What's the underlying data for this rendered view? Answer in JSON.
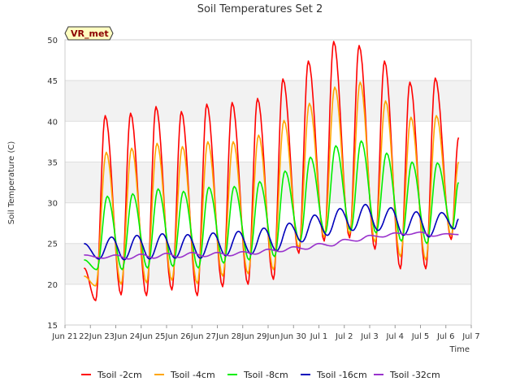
{
  "chart_data": {
    "type": "line",
    "title": "Soil Temperatures Set 2",
    "xlabel": "Time",
    "ylabel": "Soil Temperature (C)",
    "ylim": [
      15,
      50
    ],
    "yticks": [
      15,
      20,
      25,
      30,
      35,
      40,
      45,
      50
    ],
    "xlim": [
      "Jun 21",
      "Jul 7"
    ],
    "xticks": [
      "Jun 21",
      "Jun 22",
      "Jun 23",
      "Jun 24",
      "Jun 25",
      "Jun 26",
      "Jun 27",
      "Jun 28",
      "Jun 29",
      "Jun 30",
      "Jul 1",
      "Jul 2",
      "Jul 3",
      "Jul 4",
      "Jul 5",
      "Jul 6",
      "Jul 7"
    ],
    "tick_labels": [
      "Jun 21",
      "22Jun",
      "23Jun",
      "24Jun",
      "25Jun",
      "26Jun",
      "27Jun",
      "28Jun",
      "29Jun",
      "Jun 30",
      "Jul 1",
      "Jul 2",
      "Jul 3",
      "Jul 4",
      "Jul 5",
      "Jul 6",
      "Jul 7"
    ],
    "grid": true,
    "banded_background": true,
    "legend_position": "bottom",
    "annotation": "VR_met",
    "series": [
      {
        "name": "Tsoil -2cm",
        "color": "#ff0000",
        "x": [
          "Jun 21 18:00",
          "Jun 22 05:00",
          "Jun 22 14:00",
          "Jun 23 05:00",
          "Jun 23 14:00",
          "Jun 24 05:00",
          "Jun 24 14:00",
          "Jun 25 05:00",
          "Jun 25 14:00",
          "Jun 26 05:00",
          "Jun 26 14:00",
          "Jun 27 05:00",
          "Jun 27 14:00",
          "Jun 28 05:00",
          "Jun 28 14:00",
          "Jun 29 05:00",
          "Jun 29 14:00",
          "Jun 30 05:00",
          "Jun 30 14:00",
          "Jul 1 05:00",
          "Jul 1 14:00",
          "Jul 2 05:00",
          "Jul 2 14:00",
          "Jul 3 05:00",
          "Jul 3 14:00",
          "Jul 4 05:00",
          "Jul 4 14:00",
          "Jul 5 05:00",
          "Jul 5 14:00",
          "Jul 6 05:00",
          "Jul 6 12:00"
        ],
        "y": [
          22,
          18,
          40.7,
          18.7,
          41,
          18.6,
          41.8,
          19.3,
          41.2,
          18.6,
          42.1,
          19.7,
          42.3,
          20,
          42.8,
          20.6,
          45.2,
          23.8,
          47.4,
          25.3,
          49.8,
          25.7,
          49.3,
          24.3,
          47.4,
          21.9,
          44.8,
          21.9,
          45.3,
          25.5,
          38
        ]
      },
      {
        "name": "Tsoil -4cm",
        "color": "#ffa500",
        "x": [
          "Jun 21 18:00",
          "Jun 22 05:00",
          "Jun 22 15:00",
          "Jun 23 05:00",
          "Jun 23 15:00",
          "Jun 24 05:00",
          "Jun 24 15:00",
          "Jun 25 05:00",
          "Jun 25 15:00",
          "Jun 26 05:00",
          "Jun 26 15:00",
          "Jun 27 05:00",
          "Jun 27 15:00",
          "Jun 28 05:00",
          "Jun 28 15:00",
          "Jun 29 05:00",
          "Jun 29 15:00",
          "Jun 30 05:00",
          "Jun 30 15:00",
          "Jul 1 05:00",
          "Jul 1 15:00",
          "Jul 2 05:00",
          "Jul 2 15:00",
          "Jul 3 05:00",
          "Jul 3 15:00",
          "Jul 4 05:00",
          "Jul 4 15:00",
          "Jul 5 05:00",
          "Jul 5 15:00",
          "Jul 6 05:00",
          "Jul 6 12:00"
        ],
        "y": [
          21,
          19.8,
          36.2,
          20,
          36.7,
          20.2,
          37.3,
          20.5,
          36.9,
          20.1,
          37.5,
          21,
          37.5,
          21.3,
          38.3,
          21.8,
          40.1,
          24.5,
          42.2,
          25.8,
          44.2,
          26.2,
          44.8,
          25.2,
          42.5,
          23.4,
          40.5,
          23,
          40.7,
          26,
          35
        ]
      },
      {
        "name": "Tsoil -8cm",
        "color": "#00ee00",
        "x": [
          "Jun 21 18:00",
          "Jun 22 06:00",
          "Jun 22 16:00",
          "Jun 23 06:00",
          "Jun 23 16:00",
          "Jun 24 06:00",
          "Jun 24 16:00",
          "Jun 25 06:00",
          "Jun 25 16:00",
          "Jun 26 06:00",
          "Jun 26 16:00",
          "Jun 27 06:00",
          "Jun 27 16:00",
          "Jun 28 06:00",
          "Jun 28 16:00",
          "Jun 29 06:00",
          "Jun 29 16:00",
          "Jun 30 06:00",
          "Jun 30 16:00",
          "Jul 1 06:00",
          "Jul 1 16:00",
          "Jul 2 06:00",
          "Jul 2 16:00",
          "Jul 3 06:00",
          "Jul 3 16:00",
          "Jul 4 06:00",
          "Jul 4 16:00",
          "Jul 5 06:00",
          "Jul 5 16:00",
          "Jul 6 06:00",
          "Jul 6 12:00"
        ],
        "y": [
          23,
          21.8,
          30.8,
          21.8,
          31.1,
          22,
          31.7,
          22.2,
          31.4,
          22,
          31.9,
          22.6,
          32,
          23,
          32.6,
          23.4,
          33.9,
          25.3,
          35.6,
          26.3,
          37,
          26.6,
          37.6,
          26.3,
          36.1,
          25.3,
          35,
          25,
          34.9,
          26.8,
          32.5
        ]
      },
      {
        "name": "Tsoil -16cm",
        "color": "#0000bb",
        "x": [
          "Jun 21 18:00",
          "Jun 22 08:00",
          "Jun 22 20:00",
          "Jun 23 08:00",
          "Jun 23 20:00",
          "Jun 24 08:00",
          "Jun 24 20:00",
          "Jun 25 08:00",
          "Jun 25 20:00",
          "Jun 26 08:00",
          "Jun 26 20:00",
          "Jun 27 08:00",
          "Jun 27 20:00",
          "Jun 28 08:00",
          "Jun 28 20:00",
          "Jun 29 08:00",
          "Jun 29 20:00",
          "Jun 30 08:00",
          "Jun 30 20:00",
          "Jul 1 08:00",
          "Jul 1 20:00",
          "Jul 2 08:00",
          "Jul 2 20:00",
          "Jul 3 08:00",
          "Jul 3 20:00",
          "Jul 4 08:00",
          "Jul 4 20:00",
          "Jul 5 08:00",
          "Jul 5 20:00",
          "Jul 6 08:00",
          "Jul 6 12:00"
        ],
        "y": [
          25,
          23.1,
          25.8,
          23,
          26,
          23.1,
          26.2,
          23.2,
          26.1,
          23.2,
          26.3,
          23.5,
          26.5,
          23.7,
          26.9,
          24.1,
          27.5,
          25.2,
          28.5,
          26,
          29.3,
          26.6,
          29.8,
          26.6,
          29.4,
          26,
          28.9,
          25.8,
          28.8,
          26.8,
          28
        ]
      },
      {
        "name": "Tsoil -32cm",
        "color": "#9932cc",
        "x": [
          "Jun 21 18:00",
          "Jun 22 12:00",
          "Jun 23 00:00",
          "Jun 23 12:00",
          "Jun 24 00:00",
          "Jun 24 12:00",
          "Jun 25 00:00",
          "Jun 25 12:00",
          "Jun 26 00:00",
          "Jun 26 12:00",
          "Jun 27 00:00",
          "Jun 27 12:00",
          "Jun 28 00:00",
          "Jun 28 12:00",
          "Jun 29 00:00",
          "Jun 29 12:00",
          "Jun 30 00:00",
          "Jun 30 12:00",
          "Jul 1 00:00",
          "Jul 1 12:00",
          "Jul 2 00:00",
          "Jul 2 12:00",
          "Jul 3 00:00",
          "Jul 3 12:00",
          "Jul 4 00:00",
          "Jul 4 12:00",
          "Jul 5 00:00",
          "Jul 5 12:00",
          "Jul 6 00:00",
          "Jul 6 12:00"
        ],
        "y": [
          23.6,
          23.2,
          23.6,
          23.1,
          23.7,
          23.2,
          23.8,
          23.3,
          23.9,
          23.4,
          23.9,
          23.5,
          24,
          23.7,
          24.3,
          24,
          24.6,
          24.3,
          25,
          24.7,
          25.5,
          25.3,
          26,
          25.8,
          26.3,
          26.1,
          26.4,
          25.9,
          26.2,
          26.1
        ]
      }
    ]
  }
}
